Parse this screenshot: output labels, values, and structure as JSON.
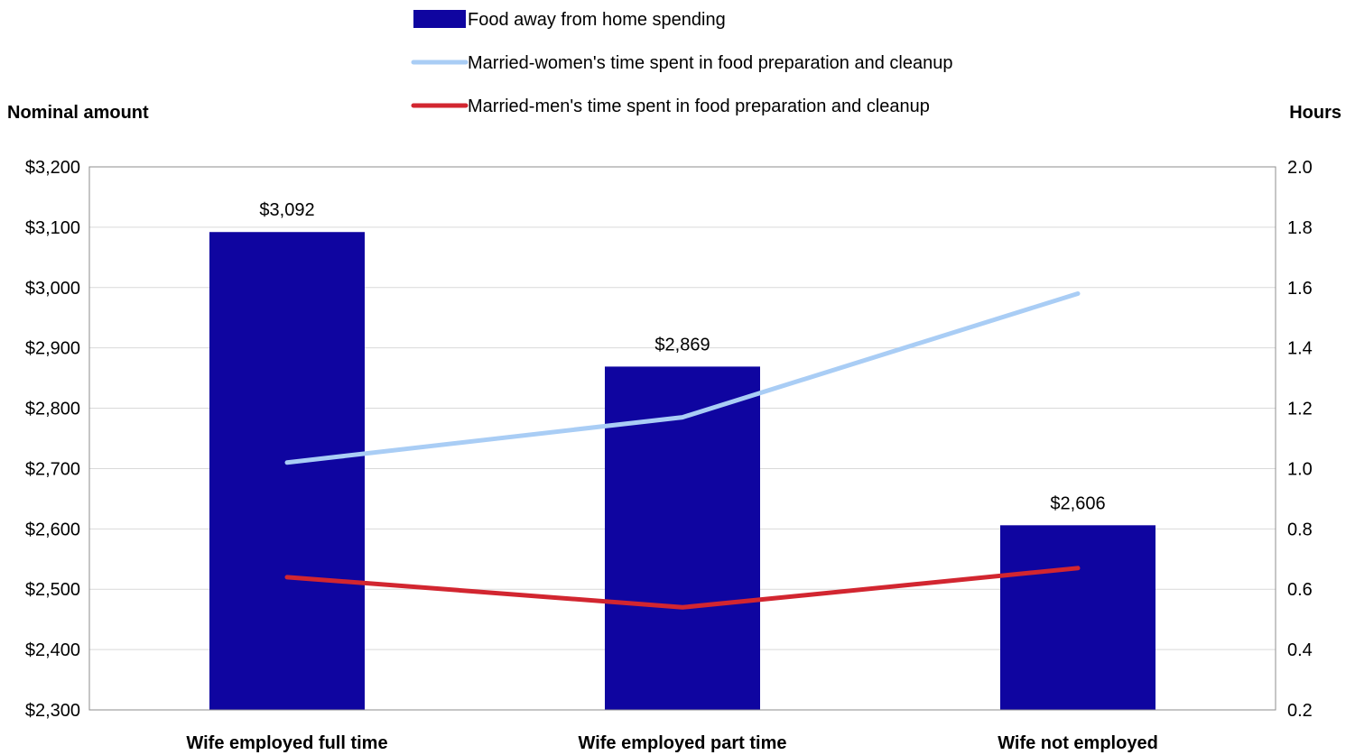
{
  "chart_data": {
    "type": "bar",
    "categories": [
      "Wife employed full time",
      "Wife employed part time",
      "Wife not employed"
    ],
    "series": [
      {
        "name": "Food away  from home spending",
        "kind": "bar",
        "axis": "left",
        "values": [
          3092,
          2869,
          2606
        ],
        "labels": [
          "$3,092",
          "$2,869",
          "$2,606"
        ],
        "color": "#0f05a0"
      },
      {
        "name": "Married-women's time spent in food preparation and cleanup",
        "kind": "line",
        "axis": "right",
        "values": [
          1.02,
          1.17,
          1.58
        ],
        "color": "#a9cdf5"
      },
      {
        "name": "Married-men's time spent in food preparation and cleanup",
        "kind": "line",
        "axis": "right",
        "values": [
          0.64,
          0.54,
          0.67
        ],
        "color": "#d22630"
      }
    ],
    "ylabel": "Nominal amount",
    "y2label": "Hours",
    "ylim": [
      2300,
      3200
    ],
    "y2lim": [
      0.2,
      2.0
    ],
    "yticks": [
      {
        "value": 3200,
        "label": "$3,200"
      },
      {
        "value": 3100,
        "label": "$3,100"
      },
      {
        "value": 3000,
        "label": "$3,000"
      },
      {
        "value": 2900,
        "label": "$2,900"
      },
      {
        "value": 2800,
        "label": "$2,800"
      },
      {
        "value": 2700,
        "label": "$2,700"
      },
      {
        "value": 2600,
        "label": "$2,600"
      },
      {
        "value": 2500,
        "label": "$2,500"
      },
      {
        "value": 2400,
        "label": "$2,400"
      },
      {
        "value": 2300,
        "label": "$2,300"
      }
    ],
    "y2ticks": [
      {
        "value": 2.0,
        "label": "2.0"
      },
      {
        "value": 1.8,
        "label": "1.8"
      },
      {
        "value": 1.6,
        "label": "1.6"
      },
      {
        "value": 1.4,
        "label": "1.4"
      },
      {
        "value": 1.2,
        "label": "1.2"
      },
      {
        "value": 1.0,
        "label": "1.0"
      },
      {
        "value": 0.8,
        "label": "0.8"
      },
      {
        "value": 0.6,
        "label": "0.6"
      },
      {
        "value": 0.4,
        "label": "0.4"
      },
      {
        "value": 0.2,
        "label": "0.2"
      }
    ],
    "grid": true,
    "legend_position": "top"
  }
}
